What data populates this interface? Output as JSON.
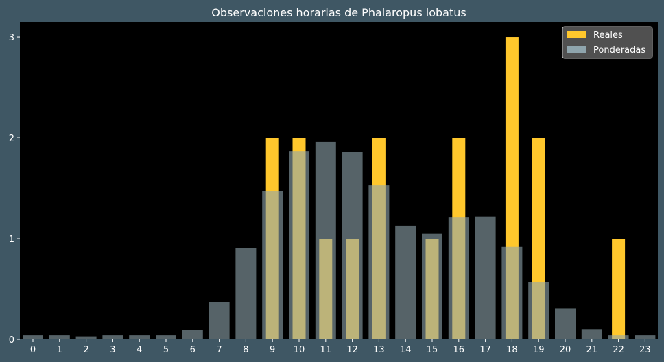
{
  "chart_data": {
    "type": "bar",
    "title": "Observaciones horarias de Phalaropus lobatus",
    "xlabel": "",
    "ylabel": "",
    "categories": [
      "0",
      "1",
      "2",
      "3",
      "4",
      "5",
      "6",
      "7",
      "8",
      "9",
      "10",
      "11",
      "12",
      "13",
      "14",
      "15",
      "16",
      "17",
      "18",
      "19",
      "20",
      "21",
      "22",
      "23"
    ],
    "ylim": [
      0,
      3.15
    ],
    "yticks": [
      0,
      1,
      2,
      3
    ],
    "series": [
      {
        "name": "Reales",
        "color": "#ffc72c",
        "values": [
          0,
          0,
          0,
          0,
          0,
          0,
          0,
          0,
          0,
          2,
          2,
          1,
          1,
          2,
          0,
          1,
          2,
          0,
          3,
          2,
          0,
          0,
          1,
          0
        ]
      },
      {
        "name": "Ponderadas",
        "color": "#8fa5ad",
        "values": [
          0.04,
          0.04,
          0.03,
          0.04,
          0.04,
          0.04,
          0.09,
          0.37,
          0.91,
          1.47,
          1.87,
          1.96,
          1.86,
          1.53,
          1.13,
          1.05,
          1.21,
          1.22,
          0.92,
          0.57,
          0.31,
          0.1,
          0.04,
          0.04
        ]
      }
    ],
    "legend": {
      "placement": "top-right"
    },
    "grid": false,
    "background": "#000000",
    "figure_background": "#3f5764"
  }
}
